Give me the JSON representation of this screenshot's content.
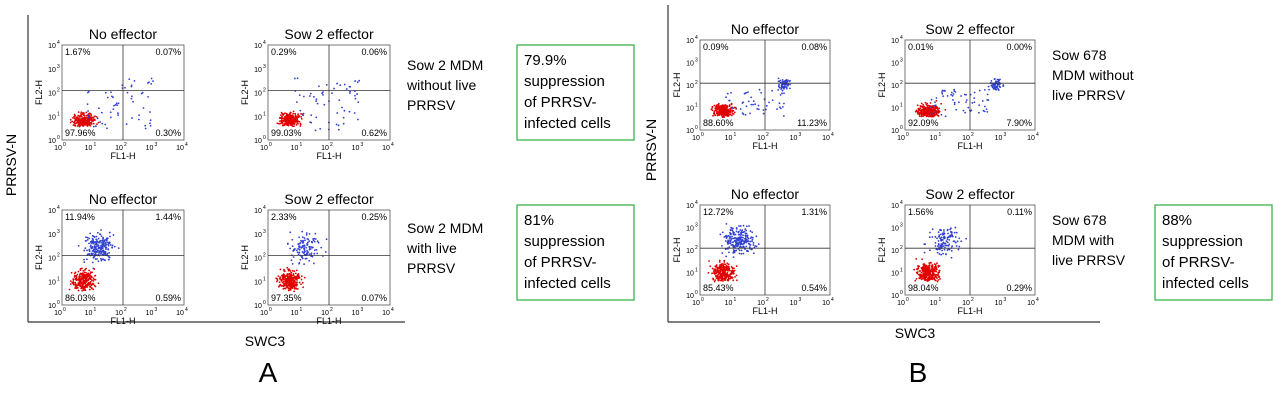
{
  "panels": [
    {
      "label": "A",
      "y_axis_label": "PRRSV-N",
      "x_axis_label": "SWC3",
      "rows": [
        {
          "plots": [
            {
              "title": "No effector",
              "quadrants": [
                "1.67%",
                "0.07%",
                "97.96%",
                "0.30%"
              ]
            },
            {
              "title": "Sow 2 effector",
              "quadrants": [
                "0.29%",
                "0.06%",
                "99.03%",
                "0.62%"
              ]
            }
          ],
          "description": [
            "Sow 2 MDM",
            "without live",
            "PRRSV"
          ],
          "result": [
            "79.9%",
            "suppression",
            "of PRRSV-",
            "infected cells"
          ]
        },
        {
          "plots": [
            {
              "title": "No effector",
              "quadrants": [
                "11.94%",
                "1.44%",
                "86.03%",
                "0.59%"
              ]
            },
            {
              "title": "Sow 2 effector",
              "quadrants": [
                "2.33%",
                "0.25%",
                "97.35%",
                "0.07%"
              ]
            }
          ],
          "description": [
            "Sow 2 MDM",
            "with live",
            "PRRSV"
          ],
          "result": [
            "81%",
            "suppression",
            "of PRRSV-",
            "infected cells"
          ]
        }
      ]
    },
    {
      "label": "B",
      "y_axis_label": "PRRSV-N",
      "x_axis_label": "SWC3",
      "rows": [
        {
          "plots": [
            {
              "title": "No effector",
              "quadrants": [
                "0.09%",
                "0.08%",
                "88.60%",
                "11.23%"
              ]
            },
            {
              "title": "Sow 2 effector",
              "quadrants": [
                "0.01%",
                "0.00%",
                "92.09%",
                "7.90%"
              ]
            }
          ],
          "description": [
            "Sow 678",
            "MDM without",
            "live PRRSV"
          ]
        },
        {
          "plots": [
            {
              "title": "No effector",
              "quadrants": [
                "12.72%",
                "1.31%",
                "85.43%",
                "0.54%"
              ]
            },
            {
              "title": "Sow 2 effector",
              "quadrants": [
                "1.56%",
                "0.11%",
                "98.04%",
                "0.29%"
              ]
            }
          ],
          "description": [
            "Sow 678",
            "MDM with",
            "live PRRSV"
          ],
          "result": [
            "88%",
            "suppression",
            "of PRRSV-",
            "infected cells"
          ]
        }
      ]
    }
  ],
  "plot_axes": {
    "x_label": "FL1-H",
    "y_label": "FL2-H",
    "tick_base": "10",
    "tick_exponents": [
      "0",
      "1",
      "2",
      "3",
      "4"
    ]
  }
}
